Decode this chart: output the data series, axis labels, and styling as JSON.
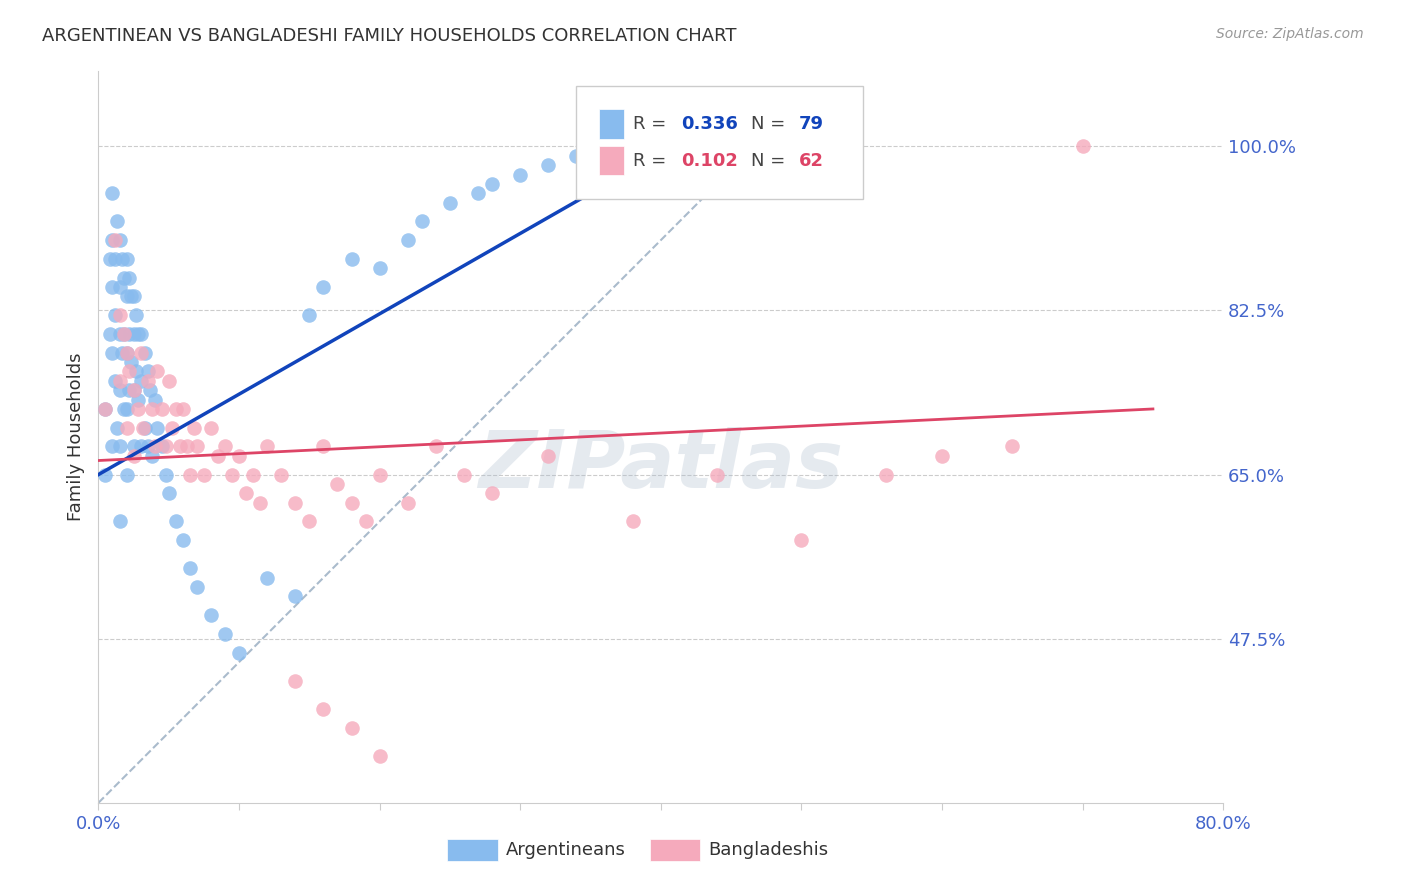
{
  "title": "ARGENTINEAN VS BANGLADESHI FAMILY HOUSEHOLDS CORRELATION CHART",
  "source": "Source: ZipAtlas.com",
  "ylabel": "Family Households",
  "xlim": [
    0.0,
    0.8
  ],
  "ylim": [
    0.3,
    1.08
  ],
  "ytick_vals": [
    0.475,
    0.65,
    0.825,
    1.0
  ],
  "ytick_labels": [
    "47.5%",
    "65.0%",
    "82.5%",
    "100.0%"
  ],
  "legend_r_arg": "0.336",
  "legend_n_arg": "79",
  "legend_r_ban": "0.102",
  "legend_n_ban": "62",
  "arg_color": "#88BBEE",
  "ban_color": "#F5AABC",
  "arg_line_color": "#1144BB",
  "ban_line_color": "#DD4466",
  "diag_line_color": "#AABBCC",
  "tick_label_color": "#4466CC",
  "grid_color": "#CCCCCC",
  "watermark_color": "#AABBCC",
  "arg_scatter_x": [
    0.005,
    0.005,
    0.008,
    0.008,
    0.01,
    0.01,
    0.01,
    0.01,
    0.01,
    0.012,
    0.012,
    0.012,
    0.013,
    0.013,
    0.015,
    0.015,
    0.015,
    0.015,
    0.015,
    0.015,
    0.017,
    0.017,
    0.018,
    0.018,
    0.018,
    0.02,
    0.02,
    0.02,
    0.02,
    0.02,
    0.022,
    0.022,
    0.022,
    0.023,
    0.023,
    0.025,
    0.025,
    0.025,
    0.025,
    0.027,
    0.027,
    0.028,
    0.028,
    0.03,
    0.03,
    0.03,
    0.033,
    0.033,
    0.035,
    0.035,
    0.037,
    0.038,
    0.04,
    0.042,
    0.045,
    0.048,
    0.05,
    0.055,
    0.06,
    0.065,
    0.07,
    0.08,
    0.09,
    0.1,
    0.12,
    0.14,
    0.15,
    0.16,
    0.18,
    0.2,
    0.22,
    0.23,
    0.25,
    0.27,
    0.28,
    0.3,
    0.32,
    0.34,
    0.35
  ],
  "arg_scatter_y": [
    0.72,
    0.65,
    0.88,
    0.8,
    0.95,
    0.9,
    0.85,
    0.78,
    0.68,
    0.88,
    0.82,
    0.75,
    0.92,
    0.7,
    0.9,
    0.85,
    0.8,
    0.74,
    0.68,
    0.6,
    0.88,
    0.78,
    0.86,
    0.8,
    0.72,
    0.88,
    0.84,
    0.78,
    0.72,
    0.65,
    0.86,
    0.8,
    0.74,
    0.84,
    0.77,
    0.84,
    0.8,
    0.74,
    0.68,
    0.82,
    0.76,
    0.8,
    0.73,
    0.8,
    0.75,
    0.68,
    0.78,
    0.7,
    0.76,
    0.68,
    0.74,
    0.67,
    0.73,
    0.7,
    0.68,
    0.65,
    0.63,
    0.6,
    0.58,
    0.55,
    0.53,
    0.5,
    0.48,
    0.46,
    0.54,
    0.52,
    0.82,
    0.85,
    0.88,
    0.87,
    0.9,
    0.92,
    0.94,
    0.95,
    0.96,
    0.97,
    0.98,
    0.99,
    1.0
  ],
  "ban_scatter_x": [
    0.005,
    0.012,
    0.015,
    0.015,
    0.018,
    0.02,
    0.02,
    0.022,
    0.025,
    0.025,
    0.028,
    0.03,
    0.032,
    0.035,
    0.038,
    0.04,
    0.042,
    0.045,
    0.048,
    0.05,
    0.052,
    0.055,
    0.058,
    0.06,
    0.063,
    0.065,
    0.068,
    0.07,
    0.075,
    0.08,
    0.085,
    0.09,
    0.095,
    0.1,
    0.105,
    0.11,
    0.115,
    0.12,
    0.13,
    0.14,
    0.15,
    0.16,
    0.17,
    0.18,
    0.19,
    0.2,
    0.22,
    0.24,
    0.26,
    0.28,
    0.32,
    0.38,
    0.44,
    0.5,
    0.56,
    0.6,
    0.65,
    0.7,
    0.14,
    0.16,
    0.18,
    0.2
  ],
  "ban_scatter_y": [
    0.72,
    0.9,
    0.82,
    0.75,
    0.8,
    0.78,
    0.7,
    0.76,
    0.74,
    0.67,
    0.72,
    0.78,
    0.7,
    0.75,
    0.72,
    0.68,
    0.76,
    0.72,
    0.68,
    0.75,
    0.7,
    0.72,
    0.68,
    0.72,
    0.68,
    0.65,
    0.7,
    0.68,
    0.65,
    0.7,
    0.67,
    0.68,
    0.65,
    0.67,
    0.63,
    0.65,
    0.62,
    0.68,
    0.65,
    0.62,
    0.6,
    0.68,
    0.64,
    0.62,
    0.6,
    0.65,
    0.62,
    0.68,
    0.65,
    0.63,
    0.67,
    0.6,
    0.65,
    0.58,
    0.65,
    0.67,
    0.68,
    1.0,
    0.43,
    0.4,
    0.38,
    0.35
  ]
}
